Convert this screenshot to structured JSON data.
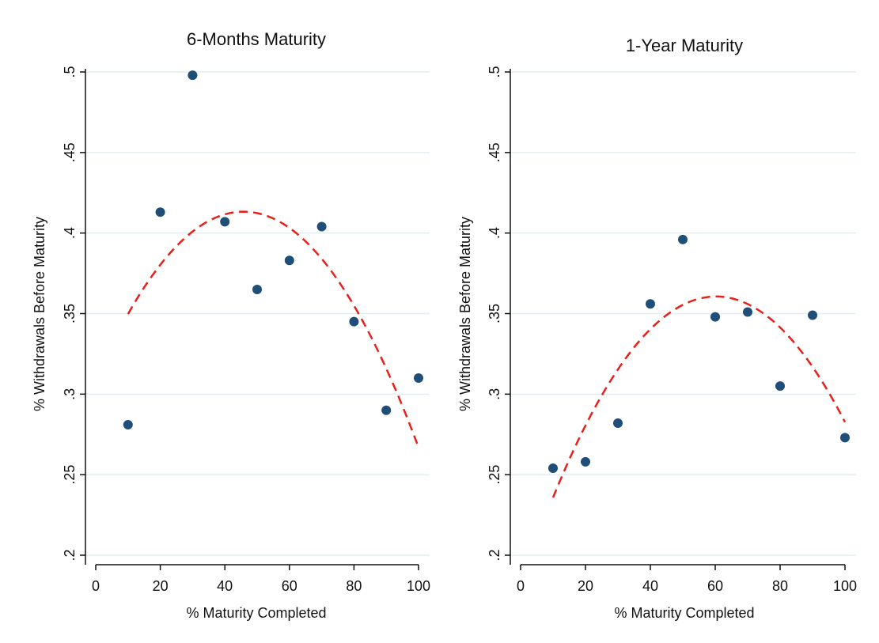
{
  "colors": {
    "marker": "#1f4e79",
    "fit_line": "#e8201a",
    "grid": "#e3eef0",
    "axis": "#111111",
    "background": "#ffffff"
  },
  "chart_data": [
    {
      "type": "scatter",
      "title": "6-Months Maturity",
      "xlabel": "% Maturity Completed",
      "ylabel": "% Withdrawals Before Maturity",
      "xlim": [
        0,
        100
      ],
      "ylim": [
        0.2,
        0.5
      ],
      "x_ticks": [
        0,
        20,
        40,
        60,
        80,
        100
      ],
      "x_tick_labels": [
        "0",
        "20",
        "40",
        "60",
        "80",
        "100"
      ],
      "y_ticks": [
        0.2,
        0.25,
        0.3,
        0.35,
        0.4,
        0.45,
        0.5
      ],
      "y_tick_labels": [
        ".2",
        ".25",
        ".3",
        ".35",
        ".4",
        ".45",
        ".5"
      ],
      "grid": "horizontal",
      "legend": "none",
      "series": [
        {
          "kind": "points",
          "x": [
            10,
            20,
            30,
            40,
            50,
            60,
            70,
            80,
            90,
            100
          ],
          "y": [
            0.281,
            0.413,
            0.498,
            0.407,
            0.365,
            0.383,
            0.404,
            0.345,
            0.29,
            0.31
          ]
        },
        {
          "kind": "dashed-fit",
          "x": [
            10,
            20,
            30,
            40,
            50,
            60,
            70,
            80,
            90,
            100
          ],
          "y": [
            0.347,
            0.381,
            0.403,
            0.413,
            0.414,
            0.404,
            0.383,
            0.352,
            0.31,
            0.273
          ]
        }
      ]
    },
    {
      "type": "scatter",
      "title": "1-Year Maturity",
      "xlabel": "% Maturity Completed",
      "ylabel": "% Withdrawals Before Maturity",
      "xlim": [
        0,
        100
      ],
      "ylim": [
        0.2,
        0.5
      ],
      "x_ticks": [
        0,
        20,
        40,
        60,
        80,
        100
      ],
      "x_tick_labels": [
        "0",
        "20",
        "40",
        "60",
        "80",
        "100"
      ],
      "y_ticks": [
        0.2,
        0.25,
        0.3,
        0.35,
        0.4,
        0.45,
        0.5
      ],
      "y_tick_labels": [
        ".2",
        ".25",
        ".3",
        ".35",
        ".4",
        ".45",
        ".5"
      ],
      "grid": "horizontal",
      "legend": "none",
      "series": [
        {
          "kind": "points",
          "x": [
            10,
            20,
            30,
            40,
            50,
            60,
            70,
            80,
            90,
            100
          ],
          "y": [
            0.254,
            0.258,
            0.282,
            0.356,
            0.396,
            0.348,
            0.351,
            0.305,
            0.349,
            0.273
          ]
        },
        {
          "kind": "dashed-fit",
          "x": [
            10,
            20,
            30,
            40,
            50,
            60,
            70,
            80,
            90,
            100
          ],
          "y": [
            0.235,
            0.281,
            0.316,
            0.341,
            0.355,
            0.36,
            0.356,
            0.341,
            0.317,
            0.283
          ]
        }
      ]
    }
  ]
}
